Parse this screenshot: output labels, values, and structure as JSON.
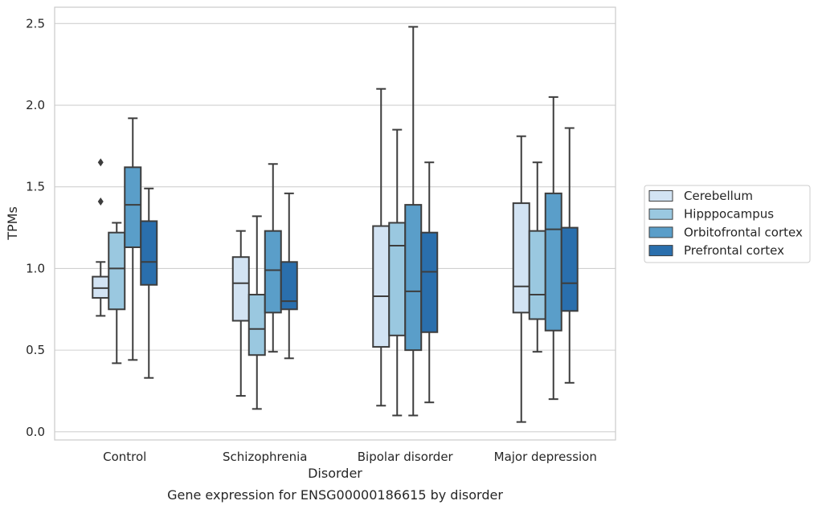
{
  "chart_data": {
    "type": "boxplot",
    "title": "",
    "caption": "Gene expression for ENSG00000186615 by disorder",
    "xlabel": "Disorder",
    "ylabel": "TPMs",
    "ylim": [
      -0.05,
      2.6
    ],
    "yticks": [
      0.0,
      0.5,
      1.0,
      1.5,
      2.0,
      2.5
    ],
    "ytick_labels": [
      "0.0",
      "0.5",
      "1.0",
      "1.5",
      "2.0",
      "2.5"
    ],
    "grid": "horizontal",
    "legend_position": "right",
    "categories": [
      "Control",
      "Schizophrenia",
      "Bipolar disorder",
      "Major depression"
    ],
    "series": [
      {
        "name": "Cerebellum",
        "color": "#d2e3f3",
        "boxes": [
          {
            "whislo": 0.71,
            "q1": 0.82,
            "med": 0.88,
            "q3": 0.95,
            "whishi": 1.04,
            "fliers": [
              1.41,
              1.65
            ]
          },
          {
            "whislo": 0.22,
            "q1": 0.68,
            "med": 0.91,
            "q3": 1.07,
            "whishi": 1.23,
            "fliers": []
          },
          {
            "whislo": 0.16,
            "q1": 0.52,
            "med": 0.83,
            "q3": 1.26,
            "whishi": 2.1,
            "fliers": []
          },
          {
            "whislo": 0.06,
            "q1": 0.73,
            "med": 0.89,
            "q3": 1.4,
            "whishi": 1.81,
            "fliers": []
          }
        ]
      },
      {
        "name": "Hipppocampus",
        "color": "#9ac8e0",
        "boxes": [
          {
            "whislo": 0.42,
            "q1": 0.75,
            "med": 1.0,
            "q3": 1.22,
            "whishi": 1.28,
            "fliers": []
          },
          {
            "whislo": 0.14,
            "q1": 0.47,
            "med": 0.63,
            "q3": 0.84,
            "whishi": 1.32,
            "fliers": []
          },
          {
            "whislo": 0.1,
            "q1": 0.59,
            "med": 1.14,
            "q3": 1.28,
            "whishi": 1.85,
            "fliers": []
          },
          {
            "whislo": 0.49,
            "q1": 0.69,
            "med": 0.84,
            "q3": 1.23,
            "whishi": 1.65,
            "fliers": []
          }
        ]
      },
      {
        "name": "Orbitofrontal cortex",
        "color": "#5a9ec9",
        "boxes": [
          {
            "whislo": 0.44,
            "q1": 1.13,
            "med": 1.39,
            "q3": 1.62,
            "whishi": 1.92,
            "fliers": []
          },
          {
            "whislo": 0.49,
            "q1": 0.73,
            "med": 0.99,
            "q3": 1.23,
            "whishi": 1.64,
            "fliers": []
          },
          {
            "whislo": 0.1,
            "q1": 0.5,
            "med": 0.86,
            "q3": 1.39,
            "whishi": 2.48,
            "fliers": []
          },
          {
            "whislo": 0.2,
            "q1": 0.62,
            "med": 1.24,
            "q3": 1.46,
            "whishi": 2.05,
            "fliers": []
          }
        ]
      },
      {
        "name": "Prefrontal cortex",
        "color": "#2a6fad",
        "boxes": [
          {
            "whislo": 0.33,
            "q1": 0.9,
            "med": 1.04,
            "q3": 1.29,
            "whishi": 1.49,
            "fliers": []
          },
          {
            "whislo": 0.45,
            "q1": 0.75,
            "med": 0.8,
            "q3": 1.04,
            "whishi": 1.46,
            "fliers": []
          },
          {
            "whislo": 0.18,
            "q1": 0.61,
            "med": 0.98,
            "q3": 1.22,
            "whishi": 1.65,
            "fliers": []
          },
          {
            "whislo": 0.3,
            "q1": 0.74,
            "med": 0.91,
            "q3": 1.25,
            "whishi": 1.86,
            "fliers": []
          }
        ]
      }
    ]
  }
}
